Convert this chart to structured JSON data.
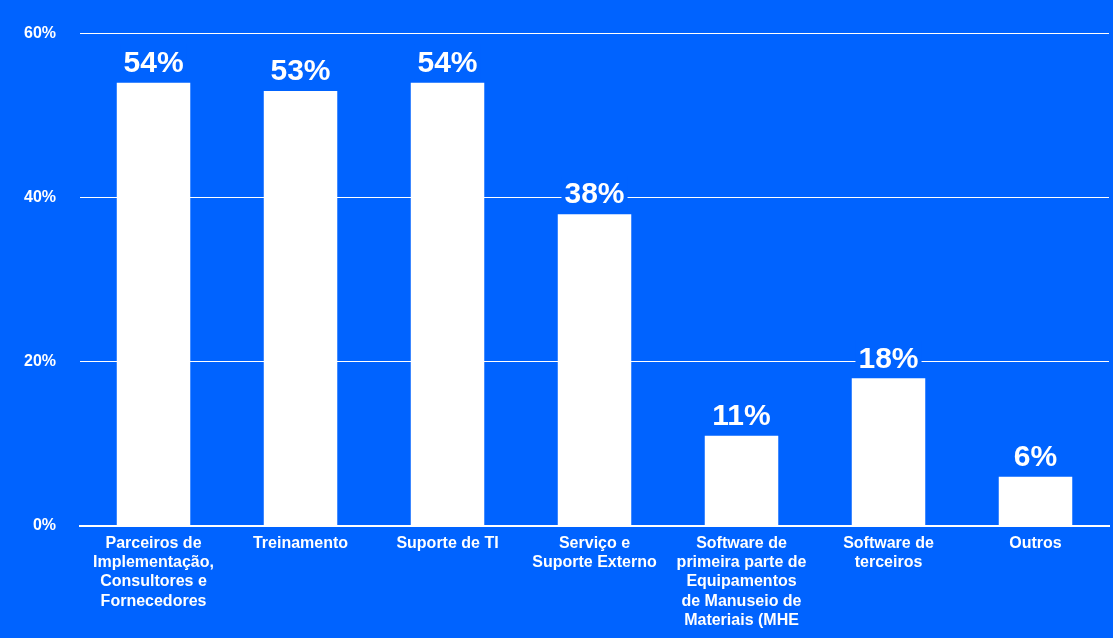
{
  "chart_data": {
    "type": "bar",
    "categories": [
      "Parceiros de Implementação, Consultores e Fornecedores",
      "Treinamento",
      "Suporte de TI",
      "Serviço e Suporte Externo",
      "Software de primeira parte de Equipamentos de Manuseio de Materiais (MHE",
      "Software de terceiros",
      "Outros"
    ],
    "values": [
      54,
      53,
      54,
      38,
      11,
      18,
      6
    ],
    "value_labels": [
      "54%",
      "53%",
      "54%",
      "38%",
      "11%",
      "18%",
      "6%"
    ],
    "color": "#ffffff",
    "ylim": [
      0,
      60
    ],
    "yticks": [
      {
        "value": 0,
        "label": "0%"
      },
      {
        "value": 20,
        "label": "20%"
      },
      {
        "value": 40,
        "label": "40%"
      },
      {
        "value": 60,
        "label": "60%"
      }
    ],
    "grid": "y",
    "legend": false
  }
}
